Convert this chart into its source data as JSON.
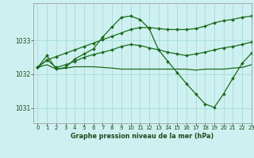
{
  "title": "Graphe pression niveau de la mer (hPa)",
  "bg_color": "#cff0f0",
  "plot_bg_color": "#cff0f0",
  "line_color": "#1a6b1a",
  "grid_color": "#aadddd",
  "xlabel_color": "#1a4a1a",
  "ylim": [
    1030.55,
    1034.1
  ],
  "xlim": [
    -0.5,
    23
  ],
  "yticks": [
    1031,
    1032,
    1033
  ],
  "xticks": [
    0,
    1,
    2,
    3,
    4,
    5,
    6,
    7,
    8,
    9,
    10,
    11,
    12,
    13,
    14,
    15,
    16,
    17,
    18,
    19,
    20,
    21,
    22,
    23
  ],
  "series": [
    [
      1032.2,
      1032.55,
      1032.15,
      1032.2,
      1032.45,
      1032.6,
      1032.75,
      1033.1,
      1033.4,
      1033.68,
      1033.72,
      1033.62,
      1033.35,
      1032.72,
      1032.38,
      1032.05,
      1031.72,
      1031.42,
      1031.12,
      1031.02,
      1031.42,
      1031.88,
      1032.32,
      1032.62
    ],
    [
      1032.2,
      1032.42,
      1032.2,
      1032.28,
      1032.38,
      1032.5,
      1032.58,
      1032.65,
      1032.72,
      1032.82,
      1032.88,
      1032.85,
      1032.78,
      1032.72,
      1032.65,
      1032.6,
      1032.55,
      1032.6,
      1032.65,
      1032.72,
      1032.78,
      1032.82,
      1032.88,
      1032.95
    ],
    [
      1032.2,
      1032.28,
      1032.15,
      1032.18,
      1032.22,
      1032.22,
      1032.22,
      1032.2,
      1032.18,
      1032.15,
      1032.15,
      1032.15,
      1032.15,
      1032.15,
      1032.15,
      1032.15,
      1032.15,
      1032.12,
      1032.15,
      1032.15,
      1032.15,
      1032.18,
      1032.2,
      1032.28
    ],
    [
      1032.2,
      1032.42,
      1032.52,
      1032.62,
      1032.72,
      1032.82,
      1032.92,
      1033.02,
      1033.12,
      1033.22,
      1033.32,
      1033.38,
      1033.38,
      1033.35,
      1033.32,
      1033.32,
      1033.32,
      1033.35,
      1033.42,
      1033.52,
      1033.58,
      1033.62,
      1033.68,
      1033.72
    ]
  ],
  "marker_series": [
    0,
    1,
    3
  ],
  "smooth_series": [
    2
  ]
}
